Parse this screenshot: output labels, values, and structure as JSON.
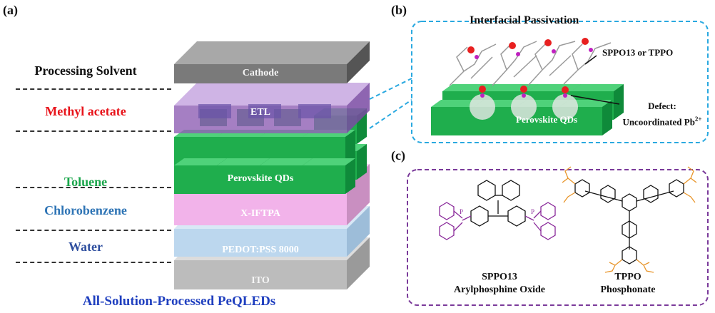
{
  "panels": {
    "a": "(a)",
    "b": "(b)",
    "c": "(c)"
  },
  "solvent_header": "Processing Solvent",
  "solvents": [
    {
      "name": "Methyl acetate",
      "color": "#e8141b"
    },
    {
      "name": "Toluene",
      "color": "#1aa64b"
    },
    {
      "name": "Chlorobenzene",
      "color": "#2e74b5"
    },
    {
      "name": "Water",
      "color": "#2f4f9f"
    }
  ],
  "layers": {
    "cathode": "Cathode",
    "etl": "ETL",
    "perovskite": "Perovskite QDs",
    "xiftpa": "X-IFTPA",
    "pedot": "PEDOT:PSS 8000",
    "ito": "ITO"
  },
  "footer": "All-Solution-Processed PeQLEDs",
  "panel_b": {
    "title": "Interfacial Passivation",
    "ligand_label": "SPPO13 or TPPO",
    "defect_line1": "Defect:",
    "defect_line2": "Uncoordinated Pb",
    "defect_sup": "2+",
    "qd_label": "Perovskite QDs"
  },
  "panel_c": {
    "mol1_name": "SPPO13",
    "mol1_class": "Arylphosphine Oxide",
    "mol2_name": "TPPO",
    "mol2_class": "Phosphonate"
  },
  "colors": {
    "green": "#1fae4d",
    "purple": "#8e5fb4",
    "pink": "#f2b3ea",
    "lightblue": "#bcd7ee",
    "grey": "#bcbcbc",
    "cathode": "#7a7a7a",
    "callout_b": "#2aa9e0",
    "callout_c": "#7a3a9a"
  }
}
